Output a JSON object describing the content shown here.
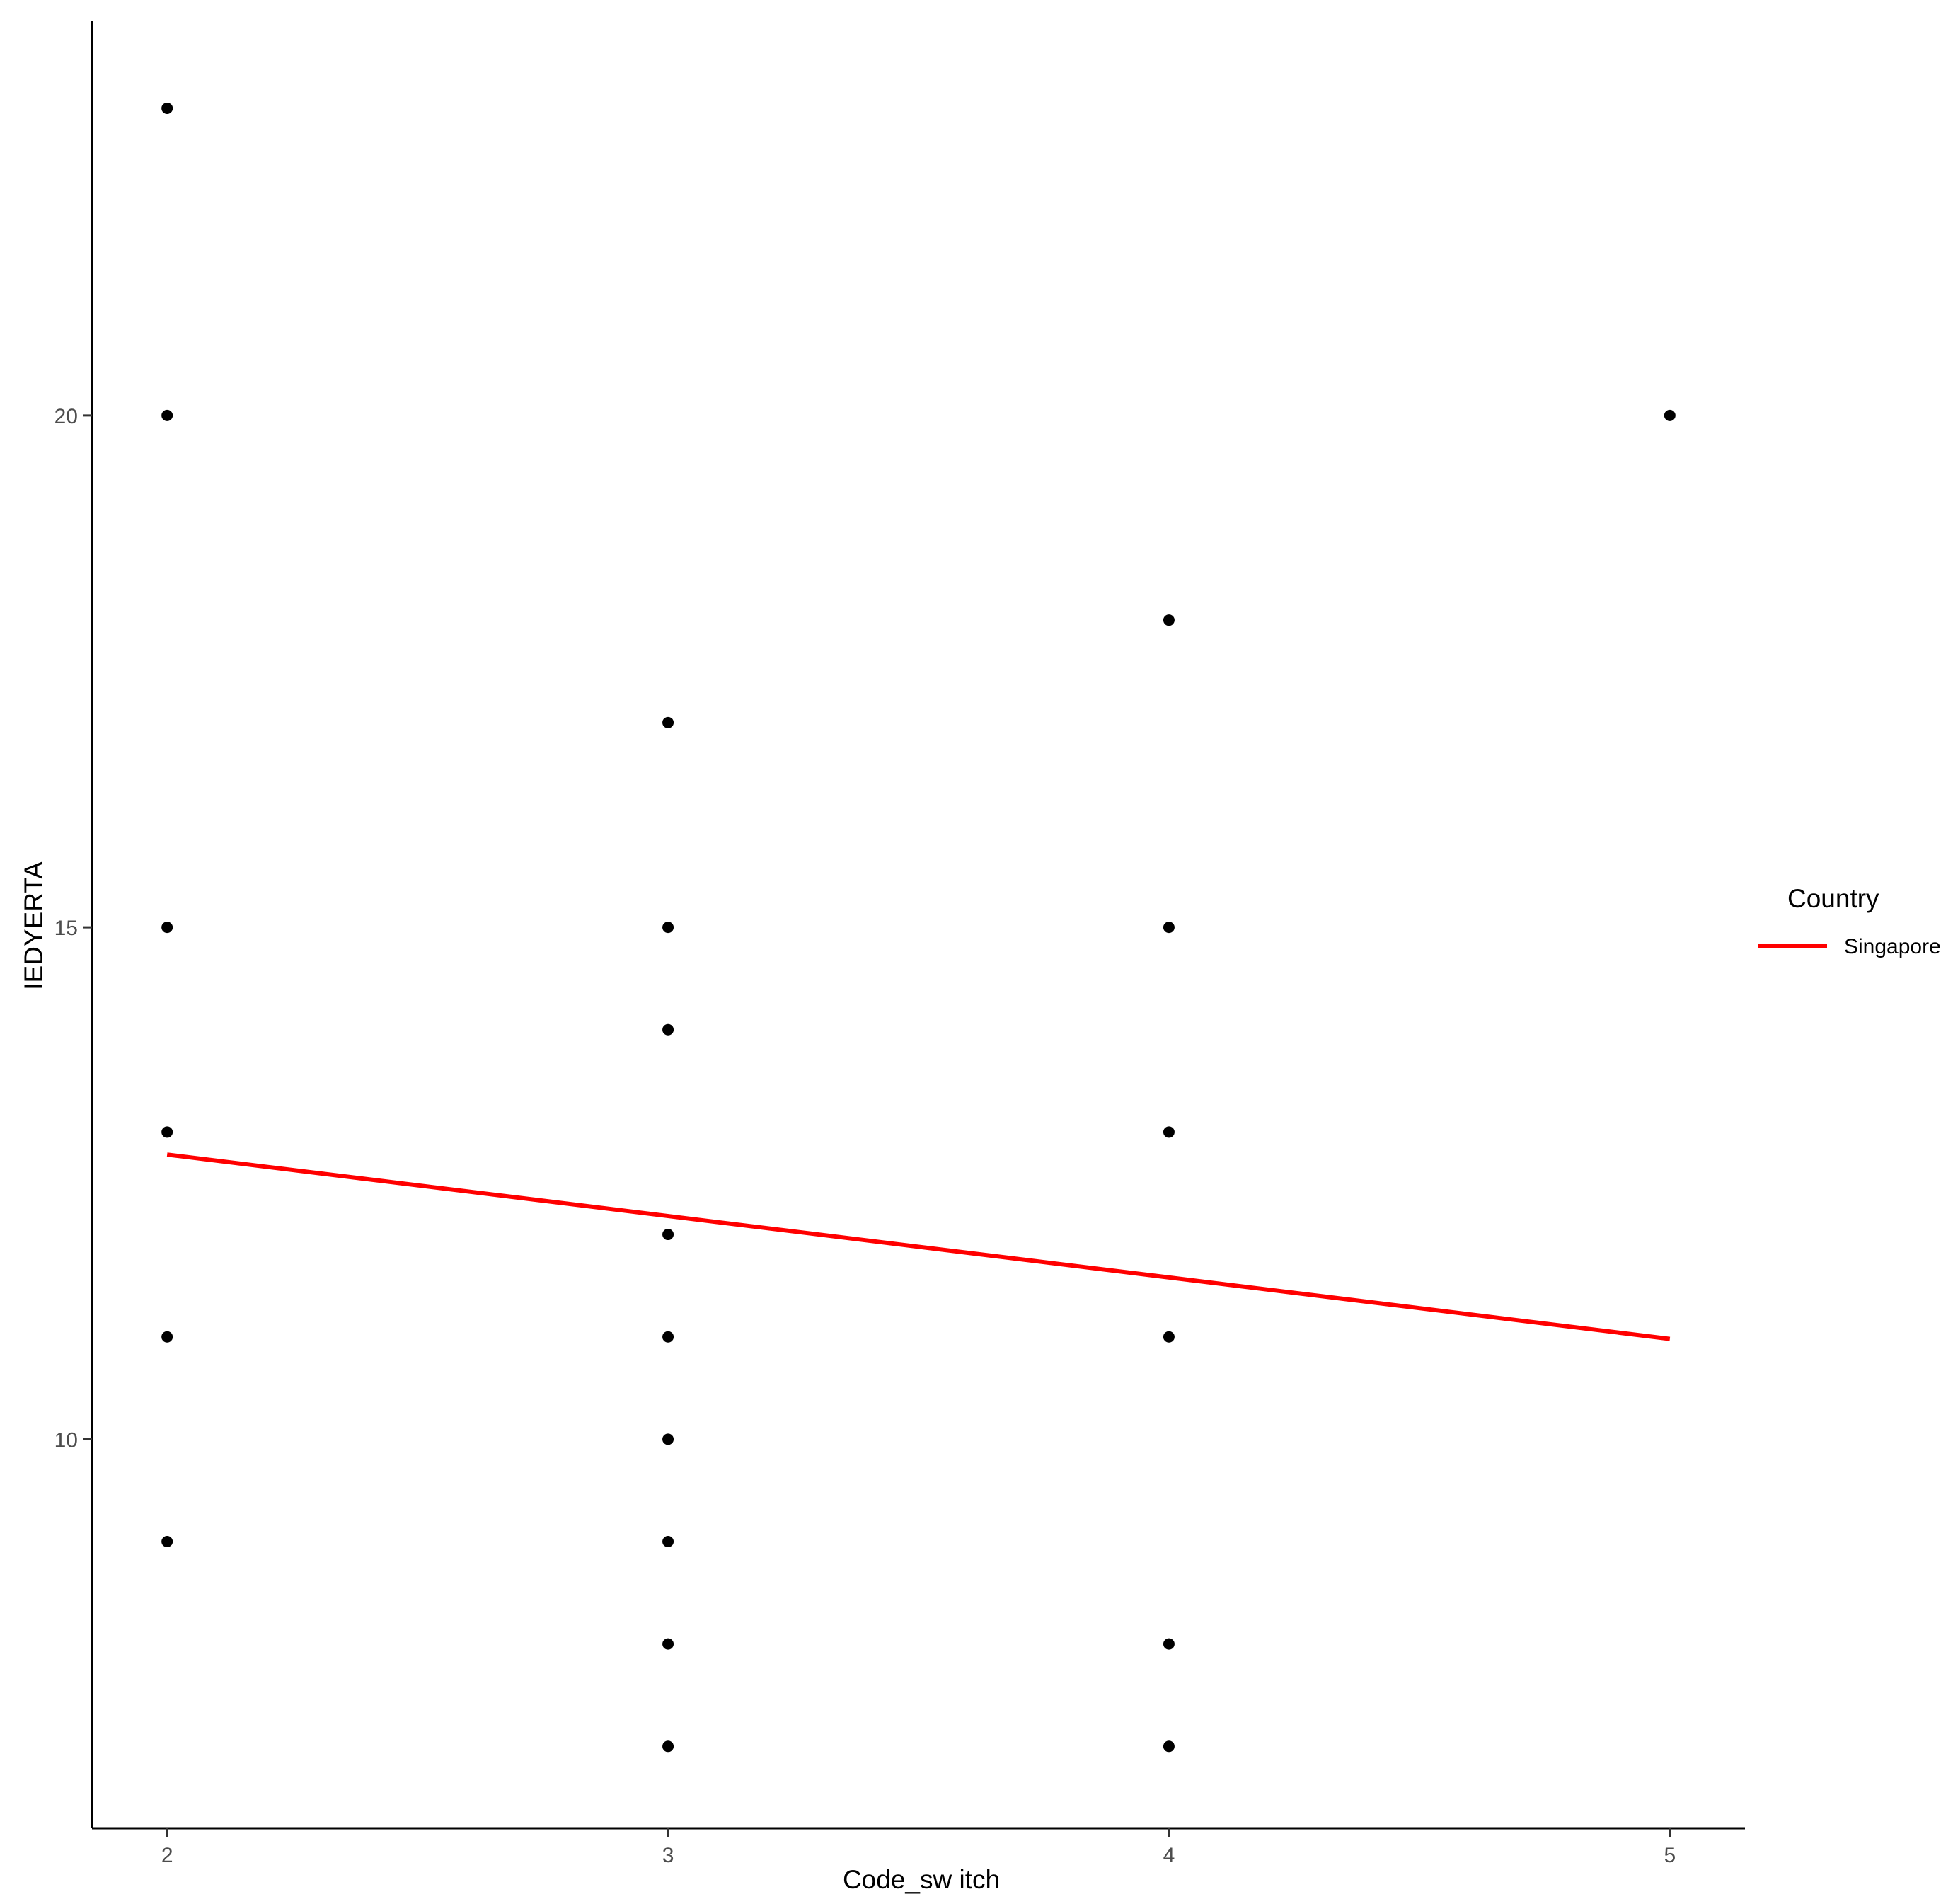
{
  "chart_data": {
    "type": "scatter",
    "xlabel": "Code_sw itch",
    "ylabel": "IEDYERTA",
    "xlim": [
      1.85,
      5.15
    ],
    "ylim": [
      6.2,
      23.85
    ],
    "x_ticks": [
      2,
      3,
      4,
      5
    ],
    "y_ticks": [
      10,
      15,
      20
    ],
    "grid": false,
    "legend_position": "right",
    "legend": {
      "title": "Country",
      "entries": [
        {
          "label": "Singapore",
          "color": "#ff0000"
        }
      ]
    },
    "points": [
      {
        "x": 2,
        "y": 23
      },
      {
        "x": 2,
        "y": 20
      },
      {
        "x": 2,
        "y": 15
      },
      {
        "x": 2,
        "y": 13
      },
      {
        "x": 2,
        "y": 11
      },
      {
        "x": 2,
        "y": 9
      },
      {
        "x": 3,
        "y": 17
      },
      {
        "x": 3,
        "y": 15
      },
      {
        "x": 3,
        "y": 14
      },
      {
        "x": 3,
        "y": 12
      },
      {
        "x": 3,
        "y": 11
      },
      {
        "x": 3,
        "y": 10
      },
      {
        "x": 3,
        "y": 9
      },
      {
        "x": 3,
        "y": 8
      },
      {
        "x": 3,
        "y": 7
      },
      {
        "x": 4,
        "y": 18
      },
      {
        "x": 4,
        "y": 15
      },
      {
        "x": 4,
        "y": 13
      },
      {
        "x": 4,
        "y": 11
      },
      {
        "x": 4,
        "y": 8
      },
      {
        "x": 4,
        "y": 7
      },
      {
        "x": 5,
        "y": 20
      }
    ],
    "point_color": "#000000",
    "trend_line": {
      "color": "#ff0000",
      "x": [
        2,
        5
      ],
      "y": [
        12.78,
        10.98
      ]
    }
  }
}
